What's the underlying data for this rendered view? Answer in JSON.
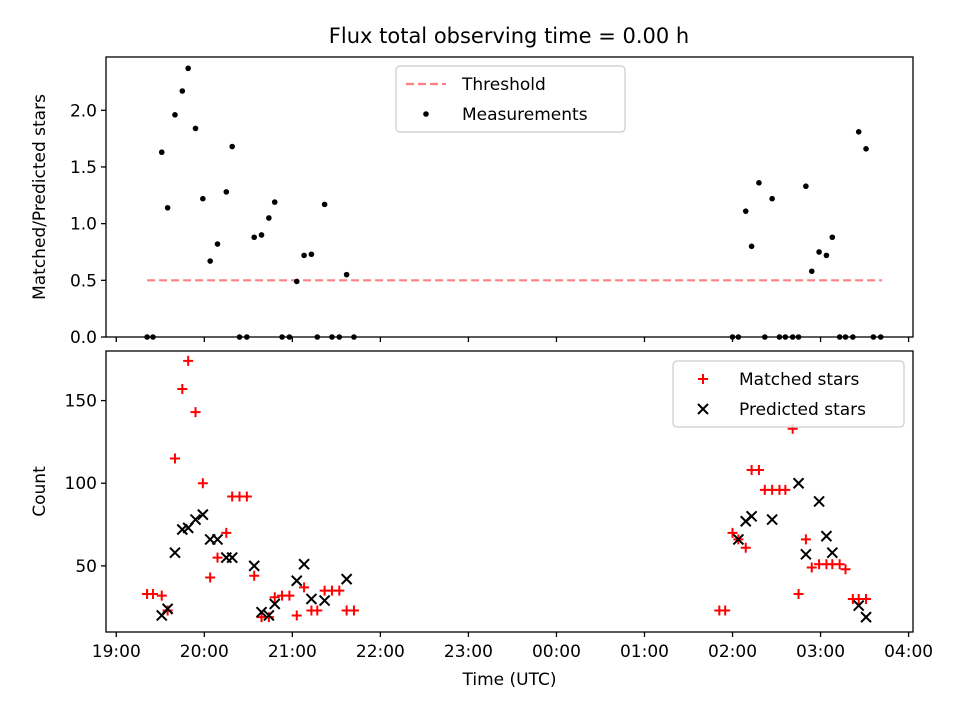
{
  "chart_data": [
    {
      "type": "scatter",
      "title": "Flux total observing time = 0.00 h",
      "ylabel": "Matched/Predicted stars",
      "xlim": [
        "18:53",
        "04:03"
      ],
      "ylim": [
        0,
        2.47
      ],
      "yticks": [
        "0.0",
        "0.5",
        "1.0",
        "1.5",
        "2.0"
      ],
      "legend": {
        "position": "top-center",
        "entries": [
          "Threshold",
          "Measurements"
        ]
      },
      "threshold": {
        "name": "Threshold",
        "value": 0.5,
        "x_range": [
          "19:21",
          "03:42"
        ],
        "color": "#ff8080",
        "style": "dashed"
      },
      "series": [
        {
          "name": "Measurements",
          "color": "#000000",
          "marker": "dot",
          "points": [
            [
              "19:21",
              0
            ],
            [
              "19:25",
              0
            ],
            [
              "19:31",
              1.63
            ],
            [
              "19:35",
              1.14
            ],
            [
              "19:40",
              1.96
            ],
            [
              "19:45",
              2.17
            ],
            [
              "19:49",
              2.37
            ],
            [
              "19:54",
              1.84
            ],
            [
              "19:59",
              1.22
            ],
            [
              "20:04",
              0.67
            ],
            [
              "20:09",
              0.82
            ],
            [
              "20:15",
              1.28
            ],
            [
              "20:19",
              1.68
            ],
            [
              "20:24",
              0
            ],
            [
              "20:29",
              0
            ],
            [
              "20:34",
              0.88
            ],
            [
              "20:39",
              0.9
            ],
            [
              "20:44",
              1.05
            ],
            [
              "20:48",
              1.19
            ],
            [
              "20:53",
              0
            ],
            [
              "20:58",
              0
            ],
            [
              "21:03",
              0.49
            ],
            [
              "21:08",
              0.72
            ],
            [
              "21:13",
              0.73
            ],
            [
              "21:17",
              0
            ],
            [
              "21:22",
              1.17
            ],
            [
              "21:27",
              0
            ],
            [
              "21:32",
              0
            ],
            [
              "21:37",
              0.55
            ],
            [
              "21:42",
              0
            ],
            [
              "02:00",
              0
            ],
            [
              "02:04",
              0
            ],
            [
              "02:09",
              1.11
            ],
            [
              "02:13",
              0.8
            ],
            [
              "02:18",
              1.36
            ],
            [
              "02:22",
              0
            ],
            [
              "02:27",
              1.22
            ],
            [
              "02:32",
              0
            ],
            [
              "02:36",
              0
            ],
            [
              "02:41",
              0
            ],
            [
              "02:45",
              0
            ],
            [
              "02:50",
              1.33
            ],
            [
              "02:54",
              0.58
            ],
            [
              "02:59",
              0.75
            ],
            [
              "03:04",
              0.72
            ],
            [
              "03:08",
              0.88
            ],
            [
              "03:13",
              0
            ],
            [
              "03:17",
              0
            ],
            [
              "03:22",
              0
            ],
            [
              "03:26",
              1.81
            ],
            [
              "03:31",
              1.66
            ],
            [
              "03:36",
              0
            ],
            [
              "03:41",
              0
            ]
          ]
        }
      ]
    },
    {
      "type": "scatter",
      "title": "",
      "xlabel": "Time (UTC)",
      "ylabel": "Count",
      "xlim": [
        "18:53",
        "04:03"
      ],
      "ylim": [
        10,
        180
      ],
      "yticks": [
        "50",
        "100",
        "150"
      ],
      "xticks": [
        "19:00",
        "20:00",
        "21:00",
        "22:00",
        "23:00",
        "00:00",
        "01:00",
        "02:00",
        "03:00",
        "04:00"
      ],
      "legend": {
        "position": "top-right",
        "entries": [
          "Matched stars",
          "Predicted stars"
        ]
      },
      "series": [
        {
          "name": "Matched stars",
          "color": "#ff0000",
          "marker": "plus",
          "points": [
            [
              "19:21",
              33
            ],
            [
              "19:25",
              33
            ],
            [
              "19:31",
              32
            ],
            [
              "19:35",
              23
            ],
            [
              "19:40",
              115
            ],
            [
              "19:45",
              157
            ],
            [
              "19:49",
              174
            ],
            [
              "19:54",
              143
            ],
            [
              "19:59",
              100
            ],
            [
              "20:04",
              43
            ],
            [
              "20:09",
              55
            ],
            [
              "20:15",
              70
            ],
            [
              "20:19",
              92
            ],
            [
              "20:24",
              92
            ],
            [
              "20:29",
              92
            ],
            [
              "20:34",
              44
            ],
            [
              "20:39",
              19
            ],
            [
              "20:44",
              19
            ],
            [
              "20:48",
              31
            ],
            [
              "20:53",
              32
            ],
            [
              "20:58",
              32
            ],
            [
              "21:03",
              20
            ],
            [
              "21:08",
              37
            ],
            [
              "21:13",
              23
            ],
            [
              "21:17",
              23
            ],
            [
              "21:22",
              35
            ],
            [
              "21:27",
              35
            ],
            [
              "21:32",
              35
            ],
            [
              "21:37",
              23
            ],
            [
              "21:42",
              23
            ],
            [
              "01:51",
              23
            ],
            [
              "01:55",
              23
            ],
            [
              "02:00",
              70
            ],
            [
              "02:04",
              66
            ],
            [
              "02:09",
              61
            ],
            [
              "02:13",
              108
            ],
            [
              "02:18",
              108
            ],
            [
              "02:22",
              96
            ],
            [
              "02:27",
              96
            ],
            [
              "02:32",
              96
            ],
            [
              "02:36",
              96
            ],
            [
              "02:41",
              133
            ],
            [
              "02:45",
              33
            ],
            [
              "02:50",
              66
            ],
            [
              "02:54",
              49
            ],
            [
              "02:59",
              51
            ],
            [
              "03:04",
              51
            ],
            [
              "03:08",
              51
            ],
            [
              "03:13",
              51
            ],
            [
              "03:17",
              48
            ],
            [
              "03:22",
              30
            ],
            [
              "03:26",
              30
            ],
            [
              "03:31",
              30
            ]
          ]
        },
        {
          "name": "Predicted stars",
          "color": "#000000",
          "marker": "x",
          "points": [
            [
              "19:31",
              20
            ],
            [
              "19:35",
              24
            ],
            [
              "19:40",
              58
            ],
            [
              "19:45",
              72
            ],
            [
              "19:49",
              73
            ],
            [
              "19:54",
              78
            ],
            [
              "19:59",
              81
            ],
            [
              "20:04",
              66
            ],
            [
              "20:09",
              66
            ],
            [
              "20:15",
              55
            ],
            [
              "20:19",
              55
            ],
            [
              "20:34",
              50
            ],
            [
              "20:39",
              22
            ],
            [
              "20:44",
              20
            ],
            [
              "20:48",
              27
            ],
            [
              "21:03",
              41
            ],
            [
              "21:08",
              51
            ],
            [
              "21:13",
              30
            ],
            [
              "21:22",
              29
            ],
            [
              "21:37",
              42
            ],
            [
              "02:04",
              66
            ],
            [
              "02:09",
              77
            ],
            [
              "02:13",
              80
            ],
            [
              "02:27",
              78
            ],
            [
              "02:45",
              100
            ],
            [
              "02:50",
              57
            ],
            [
              "02:59",
              89
            ],
            [
              "03:04",
              68
            ],
            [
              "03:08",
              58
            ],
            [
              "03:26",
              26
            ],
            [
              "03:31",
              19
            ]
          ]
        }
      ]
    }
  ]
}
